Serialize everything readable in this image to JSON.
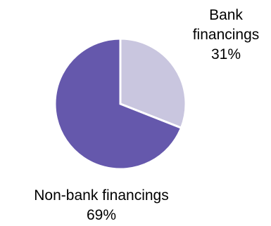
{
  "chart_data": {
    "type": "pie",
    "start_angle_deg": 0,
    "direction": "clockwise",
    "slices": [
      {
        "label_lines": [
          "Bank",
          "financings"
        ],
        "percent_text": "31%",
        "value": 31,
        "color": "#c9c6df"
      },
      {
        "label_lines": [
          "Non-bank financings"
        ],
        "percent_text": "69%",
        "value": 69,
        "color": "#6558ac"
      }
    ],
    "slice_border_color": "#ffffff"
  }
}
